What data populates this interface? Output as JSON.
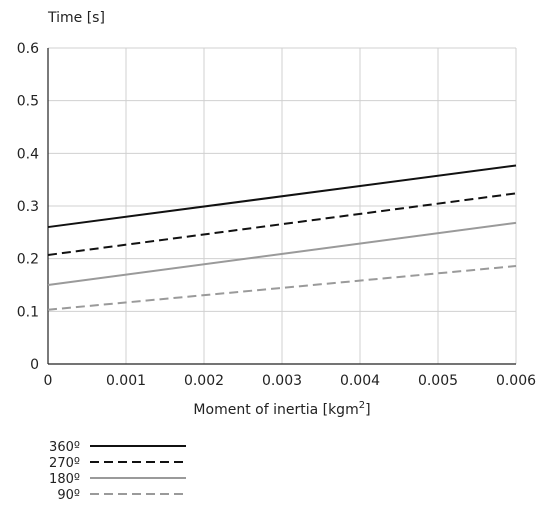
{
  "chart_data": {
    "type": "line",
    "ylabel": "Time [s]",
    "xlabel": "Moment of inertia [kgm",
    "xlabel_sup": "2",
    "xlabel_end": "]",
    "xlim": [
      0,
      0.006
    ],
    "ylim": [
      0,
      0.6
    ],
    "x_ticks": [
      "0",
      "0.001",
      "0.002",
      "0.003",
      "0.004",
      "0.005",
      "0.006"
    ],
    "y_ticks": [
      "0",
      "0.1",
      "0.2",
      "0.3",
      "0.4",
      "0.5",
      "0.6"
    ],
    "grid": true,
    "legend_position": "bottom-left",
    "series": [
      {
        "name": "360º",
        "color": "#111111",
        "dash": "solid",
        "x": [
          0,
          0.006
        ],
        "y": [
          0.26,
          0.377
        ]
      },
      {
        "name": "270º",
        "color": "#111111",
        "dash": "dashed",
        "x": [
          0,
          0.006
        ],
        "y": [
          0.207,
          0.324
        ]
      },
      {
        "name": "180º",
        "color": "#9a9a9a",
        "dash": "solid",
        "x": [
          0,
          0.006
        ],
        "y": [
          0.15,
          0.268
        ]
      },
      {
        "name": "90º",
        "color": "#9a9a9a",
        "dash": "dashed",
        "x": [
          0,
          0.006
        ],
        "y": [
          0.103,
          0.186
        ]
      }
    ]
  }
}
